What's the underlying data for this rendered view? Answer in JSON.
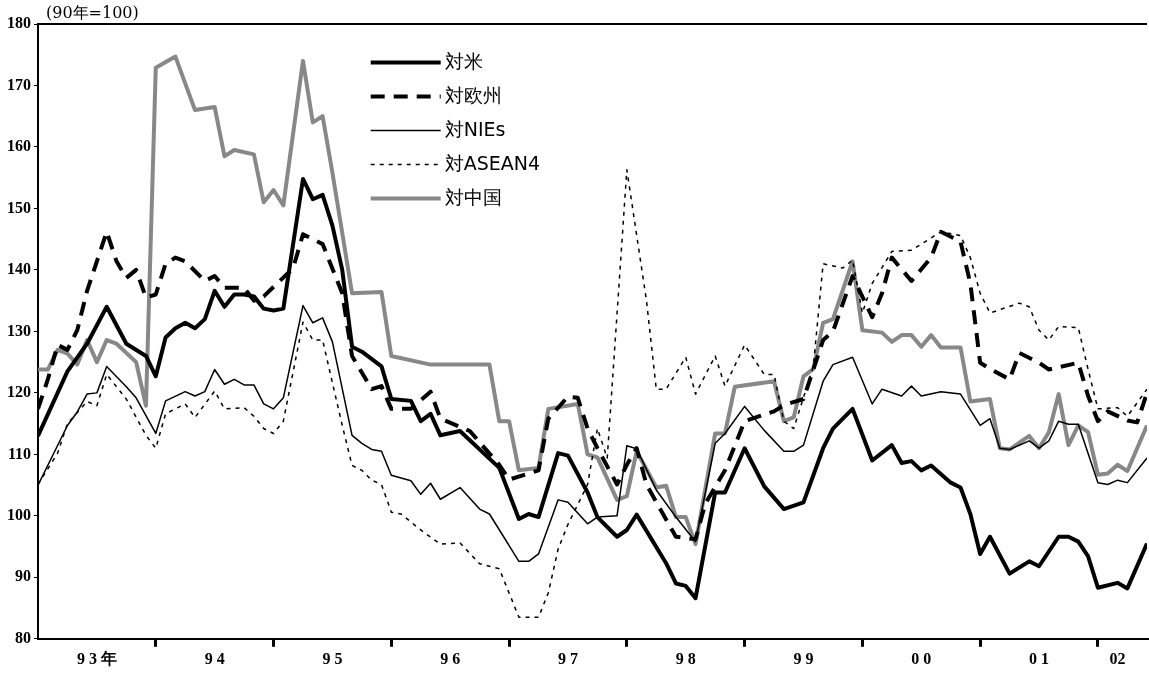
{
  "chart_data": {
    "type": "line",
    "ylabel": "(90年=100)",
    "xlim": [
      "1993-01",
      "2002-06"
    ],
    "ylim": [
      80,
      180
    ],
    "xticks": [
      {
        "value": "1993-07",
        "label": "9 3 年"
      },
      {
        "value": "1994",
        "label": null
      },
      {
        "value": "1994-07",
        "label": "9 4"
      },
      {
        "value": "1995",
        "label": null
      },
      {
        "value": "1995-07",
        "label": "9 5"
      },
      {
        "value": "1996",
        "label": null
      },
      {
        "value": "1996-07",
        "label": "9 6"
      },
      {
        "value": "1997",
        "label": null
      },
      {
        "value": "1997-07",
        "label": "9 7"
      },
      {
        "value": "1998",
        "label": null
      },
      {
        "value": "1998-07",
        "label": "9 8"
      },
      {
        "value": "1999",
        "label": null
      },
      {
        "value": "1999-07",
        "label": "9 9"
      },
      {
        "value": "2000",
        "label": null
      },
      {
        "value": "2000-07",
        "label": "0 0"
      },
      {
        "value": "2001",
        "label": null
      },
      {
        "value": "2001-07",
        "label": "0 1"
      },
      {
        "value": "2002",
        "label": null
      },
      {
        "value": "2002-03",
        "label": "02"
      }
    ],
    "yticks": [
      80,
      90,
      100,
      110,
      120,
      130,
      140,
      150,
      160,
      170,
      180
    ],
    "legend": "top",
    "grid": false,
    "series": [
      {
        "name": "対米",
        "color": "#000000",
        "line_style": "solid",
        "x": [
          "1993-01",
          "1993-04",
          "1993-06",
          "1993-08",
          "1993-10",
          "1993-12",
          "1994-01",
          "1994-02",
          "1994-03",
          "1994-04",
          "1994-05",
          "1994-06",
          "1994-07",
          "1994-08",
          "1994-09",
          "1994-10",
          "1994-11",
          "1994-12",
          "1995-01",
          "1995-02",
          "1995-04",
          "1995-05",
          "1995-06",
          "1995-07",
          "1995-08",
          "1995-09",
          "1995-10",
          "1995-12",
          "1996-01",
          "1996-03",
          "1996-04",
          "1996-05",
          "1996-06",
          "1996-08",
          "1996-12",
          "1997-02",
          "1997-03",
          "1997-04",
          "1997-06",
          "1997-07",
          "1997-09",
          "1997-10",
          "1997-12",
          "1998-01",
          "1998-02",
          "1998-05",
          "1998-06",
          "1998-07",
          "1998-08",
          "1998-10",
          "1998-11",
          "1999-01",
          "1999-03",
          "1999-05",
          "1999-07",
          "1999-09",
          "1999-10",
          "1999-12",
          "2000-02",
          "2000-04",
          "2000-05",
          "2000-06",
          "2000-07",
          "2000-08",
          "2000-10",
          "2000-11",
          "2000-12",
          "2001-01",
          "2001-02",
          "2001-04",
          "2001-06",
          "2001-07",
          "2001-09",
          "2001-10",
          "2001-11",
          "2001-12",
          "2002-01",
          "2002-03",
          "2002-04",
          "2002-06"
        ],
        "values": [
          113,
          123.5,
          128,
          134,
          128,
          126,
          122.7,
          129,
          130.5,
          131.4,
          130.5,
          132,
          136.6,
          134,
          136,
          136,
          135.7,
          133.7,
          133.4,
          133.7,
          154.8,
          151.5,
          152.2,
          147.2,
          140,
          127.5,
          126.7,
          124.3,
          119,
          118.7,
          115.4,
          116.6,
          113.1,
          113.8,
          107.8,
          99.5,
          100.3,
          99.8,
          110.2,
          109.8,
          103.8,
          99.8,
          96.6,
          97.7,
          100.2,
          92.3,
          89,
          88.6,
          86.6,
          103.8,
          103.8,
          111,
          104.8,
          101.1,
          102.2,
          111,
          114.2,
          117.4,
          109,
          111.5,
          108.6,
          108.9,
          107.4,
          108.2,
          105.4,
          104.6,
          100.3,
          93.8,
          96.6,
          90.6,
          92.6,
          91.8,
          96.6,
          96.6,
          95.8,
          93.4,
          88.3,
          89.1,
          88.2,
          95.5
        ]
      },
      {
        "name": "対欧州",
        "color": "#000000",
        "line_style": "dashed",
        "x": [
          "1993-01",
          "1993-02",
          "1993-03",
          "1993-04",
          "1993-05",
          "1993-06",
          "1993-08",
          "1993-09",
          "1993-10",
          "1993-11",
          "1993-12",
          "1994-01",
          "1994-02",
          "1994-03",
          "1994-04",
          "1994-06",
          "1994-07",
          "1994-08",
          "1994-10",
          "1994-11",
          "1994-12",
          "1995-03",
          "1995-04",
          "1995-06",
          "1995-08",
          "1995-09",
          "1995-11",
          "1995-12",
          "1996-01",
          "1996-03",
          "1996-05",
          "1996-06",
          "1996-09",
          "1996-12",
          "1997-01",
          "1997-04",
          "1997-05",
          "1997-07",
          "1997-08",
          "1997-09",
          "1997-10",
          "1997-12",
          "1998-01",
          "1998-02",
          "1998-03",
          "1998-05",
          "1998-06",
          "1998-08",
          "1998-09",
          "1998-11",
          "1999-01",
          "1999-04",
          "1999-05",
          "1999-07",
          "1999-09",
          "1999-10",
          "1999-12",
          "2000-02",
          "2000-03",
          "2000-04",
          "2000-06",
          "2000-08",
          "2000-09",
          "2000-11",
          "2000-12",
          "2001-01",
          "2001-02",
          "2001-04",
          "2001-05",
          "2001-07",
          "2001-08",
          "2001-11",
          "2001-12",
          "2002-01",
          "2002-02",
          "2002-04",
          "2002-05",
          "2002-06"
        ],
        "values": [
          117.4,
          122.2,
          127.8,
          127,
          130.2,
          136.6,
          146.2,
          141.4,
          138.7,
          140,
          135.5,
          136,
          141,
          142,
          141.4,
          138.2,
          139,
          137.1,
          137.1,
          135,
          135.7,
          140.3,
          145.8,
          144.2,
          136.2,
          126,
          120.6,
          121.1,
          117.4,
          117.4,
          120.2,
          115.8,
          113.8,
          108.3,
          105.9,
          107.4,
          115.8,
          119.4,
          119.2,
          114.2,
          111,
          105.1,
          108.3,
          111,
          105.1,
          99.4,
          96.6,
          96.2,
          102,
          107.4,
          115.4,
          117,
          118,
          119,
          128.6,
          130,
          139,
          132.3,
          136.2,
          142,
          138.2,
          142,
          146.2,
          144.6,
          137.8,
          124.9,
          123.9,
          122.2,
          126.5,
          124.9,
          123.8,
          124.9,
          119.5,
          115.4,
          117,
          115.5,
          115.2,
          120
        ]
      },
      {
        "name": "対NIEs",
        "color": "#000000",
        "line_style": "solid",
        "x": [
          "1993-01",
          "1993-04",
          "1993-05",
          "1993-06",
          "1993-07",
          "1993-08",
          "1993-10",
          "1993-11",
          "1994-01",
          "1994-02",
          "1994-04",
          "1994-05",
          "1994-06",
          "1994-07",
          "1994-08",
          "1994-09",
          "1994-10",
          "1994-11",
          "1994-12",
          "1995-01",
          "1995-02",
          "1995-04",
          "1995-05",
          "1995-06",
          "1995-07",
          "1995-09",
          "1995-10",
          "1995-11",
          "1995-12",
          "1996-01",
          "1996-03",
          "1996-04",
          "1996-05",
          "1996-06",
          "1996-08",
          "1996-10",
          "1996-11",
          "1997-02",
          "1997-03",
          "1997-04",
          "1997-06",
          "1997-07",
          "1997-09",
          "1997-10",
          "1997-12",
          "1998-01",
          "1998-02",
          "1998-04",
          "1998-06",
          "1998-08",
          "1998-10",
          "1998-11",
          "1999-01",
          "1999-03",
          "1999-05",
          "1999-06",
          "1999-07",
          "1999-09",
          "1999-10",
          "1999-12",
          "2000-02",
          "2000-03",
          "2000-05",
          "2000-06",
          "2000-07",
          "2000-09",
          "2000-11",
          "2001-01",
          "2001-02",
          "2001-03",
          "2001-04",
          "2001-06",
          "2001-07",
          "2001-08",
          "2001-09",
          "2001-10",
          "2001-11",
          "2002-01",
          "2002-02",
          "2002-03",
          "2002-04",
          "2002-06"
        ],
        "values": [
          105,
          114.7,
          116.9,
          119.8,
          120,
          124.3,
          121,
          119.2,
          113.4,
          118.7,
          120.2,
          119.5,
          120.2,
          123.8,
          121.4,
          122.2,
          121.3,
          121.3,
          118.2,
          117.4,
          119.2,
          134.2,
          131.4,
          132.2,
          128.3,
          113.1,
          111.8,
          110.8,
          110.5,
          106.6,
          105.7,
          103.5,
          105.3,
          102.7,
          104.6,
          101.1,
          100.3,
          92.6,
          92.6,
          93.8,
          102.6,
          102.2,
          98.7,
          99.8,
          100,
          111.4,
          110.9,
          104.2,
          99.8,
          95.8,
          111.8,
          113.4,
          117.8,
          113.9,
          110.5,
          110.5,
          111.5,
          121.9,
          124.6,
          125.8,
          118.2,
          120.6,
          119.5,
          121.1,
          119.5,
          120.2,
          119.8,
          114.7,
          115.8,
          111,
          110.8,
          112.2,
          111,
          112.2,
          115.4,
          114.9,
          114.9,
          105.4,
          105.1,
          105.8,
          105.4,
          109.4
        ]
      },
      {
        "name": "対ASEAN4",
        "color": "#000000",
        "line_style": "dotted",
        "x": [
          "1993-01",
          "1993-03",
          "1993-04",
          "1993-06",
          "1993-07",
          "1993-08",
          "1993-10",
          "1993-12",
          "1994-01",
          "1994-02",
          "1994-04",
          "1994-05",
          "1994-07",
          "1994-08",
          "1994-10",
          "1994-11",
          "1994-12",
          "1995-01",
          "1995-02",
          "1995-04",
          "1995-05",
          "1995-06",
          "1995-08",
          "1995-09",
          "1995-10",
          "1995-11",
          "1995-12",
          "1996-01",
          "1996-02",
          "1996-04",
          "1996-06",
          "1996-08",
          "1996-10",
          "1996-12",
          "1997-02",
          "1997-04",
          "1997-05",
          "1997-06",
          "1997-07",
          "1997-09",
          "1997-10",
          "1997-11",
          "1998-01",
          "1998-03",
          "1998-04",
          "1998-05",
          "1998-07",
          "1998-08",
          "1998-10",
          "1998-11",
          "1999-01",
          "1999-03",
          "1999-04",
          "1999-05",
          "1999-06",
          "1999-08",
          "1999-09",
          "1999-11",
          "1999-12",
          "2000-01",
          "2000-02",
          "2000-04",
          "2000-06",
          "2000-09",
          "2000-11",
          "2000-12",
          "2001-01",
          "2001-02",
          "2001-05",
          "2001-06",
          "2001-07",
          "2001-08",
          "2001-09",
          "2001-11",
          "2001-12",
          "2002-01",
          "2002-03",
          "2002-04",
          "2002-06"
        ],
        "values": [
          105.1,
          110.2,
          115,
          118.6,
          117.9,
          123,
          119,
          113.1,
          111,
          116.6,
          118.2,
          116,
          120.3,
          117.4,
          117.6,
          116.2,
          114.2,
          113.4,
          115.4,
          131.5,
          128.6,
          128.6,
          114.7,
          108.2,
          107.4,
          105.8,
          105.1,
          100.6,
          100.3,
          97.7,
          95.4,
          95.6,
          92.2,
          91.4,
          83.5,
          83.5,
          87.5,
          94.6,
          98.6,
          105.1,
          114.2,
          109.4,
          156.3,
          135,
          120.6,
          120.6,
          125.8,
          119.8,
          126,
          121.1,
          127.8,
          123,
          123,
          115.4,
          114.2,
          124.3,
          141,
          140.3,
          141.6,
          133,
          137.8,
          143,
          143.2,
          146.2,
          145.6,
          142,
          136.2,
          133,
          134.6,
          134,
          130.2,
          128.6,
          130.8,
          130.6,
          123.8,
          117.4,
          117.6,
          116.2,
          120.6
        ]
      },
      {
        "name": "対中国",
        "color": "#888888",
        "line_style": "solid",
        "x": [
          "1993-01",
          "1993-02",
          "1993-03",
          "1993-04",
          "1993-05",
          "1993-06",
          "1993-07",
          "1993-08",
          "1993-09",
          "1993-11",
          "1993-12",
          "1994-01",
          "1994-03",
          "1994-05",
          "1994-07",
          "1994-08",
          "1994-09",
          "1994-11",
          "1994-12",
          "1995-01",
          "1995-02",
          "1995-04",
          "1995-05",
          "1995-06",
          "1995-07",
          "1995-09",
          "1995-12",
          "1996-01",
          "1996-05",
          "1996-11",
          "1996-12",
          "1997-01",
          "1997-02",
          "1997-04",
          "1997-05",
          "1997-08",
          "1997-09",
          "1997-10",
          "1997-12",
          "1998-01",
          "1998-02",
          "1998-04",
          "1998-05",
          "1998-06",
          "1998-07",
          "1998-08",
          "1998-10",
          "1998-11",
          "1998-12",
          "1999-04",
          "1999-05",
          "1999-06",
          "1999-07",
          "1999-08",
          "1999-09",
          "1999-10",
          "1999-12",
          "2000-01",
          "2000-03",
          "2000-04",
          "2000-05",
          "2000-06",
          "2000-07",
          "2000-08",
          "2000-09",
          "2000-11",
          "2000-12",
          "2001-02",
          "2001-03",
          "2001-04",
          "2001-06",
          "2001-07",
          "2001-08",
          "2001-09",
          "2001-10",
          "2001-11",
          "2001-12",
          "2002-01",
          "2002-02",
          "2002-03",
          "2002-04",
          "2002-06"
        ],
        "values": [
          123.8,
          123.8,
          127,
          126.4,
          124.6,
          128.6,
          125,
          128.6,
          128,
          125,
          117.9,
          172.9,
          174.7,
          166,
          166.5,
          158.5,
          159.5,
          158.8,
          151,
          153,
          150.5,
          174,
          164,
          165,
          155.8,
          136.2,
          136.4,
          126,
          124.6,
          124.6,
          115.4,
          115.4,
          107.4,
          107.8,
          117.4,
          118.2,
          110,
          109.5,
          102.6,
          103.2,
          110.5,
          104.6,
          104.9,
          99.8,
          99.8,
          95.4,
          113.4,
          113.4,
          121,
          121.9,
          115.4,
          116,
          122.7,
          123.9,
          131.4,
          132,
          141.4,
          130.2,
          129.8,
          128.3,
          129.4,
          129.4,
          127.5,
          129.4,
          127.4,
          127.4,
          118.6,
          119,
          111,
          110.8,
          113,
          111,
          113.6,
          119.8,
          111.5,
          114.7,
          113.6,
          106.7,
          106.9,
          108.3,
          107.3,
          114.7
        ]
      }
    ]
  }
}
